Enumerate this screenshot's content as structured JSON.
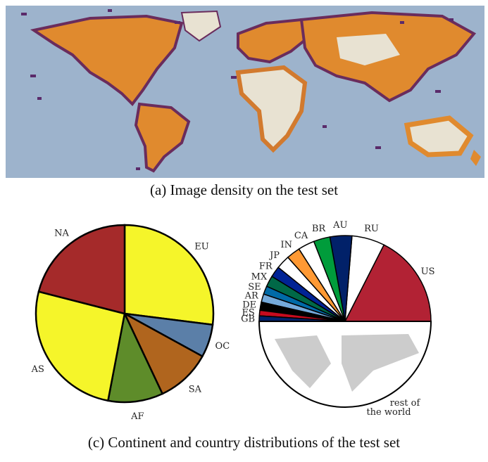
{
  "captions": {
    "a": "(a) Image density on the test set",
    "c": "(c) Continent and country distributions of the test set"
  },
  "colors": {
    "ocean": "#9db3cc",
    "land_low": "#e8e2d2",
    "density_orange": "#e08a2e",
    "density_purple": "#5a2a6a",
    "continent_na": "#a52a2a",
    "continent_eu": "#f5f52a",
    "continent_oc": "#5b7fa8",
    "continent_sa": "#b0651e",
    "continent_af": "#5e8c2a",
    "continent_as": "#f5f52a"
  },
  "chart_data": [
    {
      "type": "heatmap",
      "title": "",
      "description_source": "map",
      "xlabel": "",
      "ylabel": ""
    },
    {
      "type": "pie",
      "categories": [
        "NA",
        "EU",
        "OC",
        "SA",
        "AF",
        "AS"
      ],
      "values": [
        21,
        27,
        6,
        10,
        10,
        26
      ],
      "colors": [
        "#a52a2a",
        "#f5f52a",
        "#5b7fa8",
        "#b0651e",
        "#5e8c2a",
        "#f5f52a"
      ]
    },
    {
      "type": "pie",
      "categories": [
        "US",
        "RU",
        "AU",
        "BR",
        "CA",
        "IN",
        "JP",
        "FR",
        "MX",
        "SE",
        "AR",
        "DE",
        "ES",
        "GB",
        "rest of the world"
      ],
      "values": [
        17,
        6,
        4,
        3,
        3,
        2.5,
        2.5,
        2,
        2,
        1.5,
        1.5,
        1.5,
        1,
        1,
        51
      ]
    }
  ],
  "pie_labels": {
    "continents": [
      "NA",
      "EU",
      "OC",
      "SA",
      "AF",
      "AS"
    ],
    "countries": [
      "US",
      "RU",
      "AU",
      "BR",
      "CA",
      "IN",
      "JP",
      "FR",
      "MX",
      "SE",
      "AR",
      "DE",
      "ES",
      "GB"
    ],
    "rest_line1": "rest of",
    "rest_line2": "the world"
  }
}
